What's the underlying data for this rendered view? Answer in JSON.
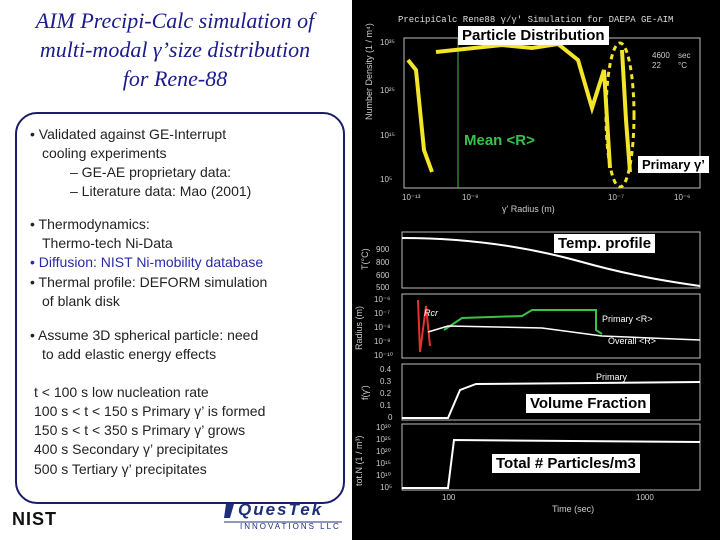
{
  "title": {
    "line1": "AIM Precipi-Calc simulation of",
    "line2": "multi-modal γ’size distribution",
    "line3": "for Rene-88"
  },
  "bullets": {
    "b1_line1": "• Validated against GE-Interrupt",
    "b1_line2": "cooling experiments",
    "b1_sub1": "– GE-AE proprietary data:",
    "b1_sub2": "– Literature data: Mao (2001)",
    "b2_line1": "• Thermodynamics:",
    "b2_line2": "Thermo-tech Ni-Data",
    "b3": "• Diffusion: NIST Ni-mobility database",
    "b4_line1": "• Thermal profile: DEFORM simulation",
    "b4_line2": "of blank disk",
    "b5_line1": "• Assume 3D spherical particle: need",
    "b5_line2": "to add elastic energy effects"
  },
  "timeline": [
    "t < 100 s low nucleation rate",
    "100 s < t < 150 s  Primary γ’ is formed",
    "150 s < t < 350 s  Primary γ’ grows",
    "400 s Secondary γ’ precipitates",
    "500 s Tertiary γ’ precipitates"
  ],
  "logos": {
    "nist": "NIST",
    "questek_line1": "QuesTek",
    "questek_line2": "INNOVATIONS LLC"
  },
  "figure": {
    "header": "PrecipiCalc Rene88 γ/γ' Simulation for DAEPA GE-AIM",
    "annotations": {
      "particle_distribution": "Particle Distribution",
      "mean_r": "Mean <R>",
      "primary_gamma": "Primary γ’",
      "temp_profile": "Temp. profile",
      "volume_fraction": "Volume Fraction",
      "total_particles": "Total # Particles/m3"
    },
    "top_plot": {
      "ylabel": "Number Density (1 / m⁴)",
      "xlabel": "γ' Radius (m)",
      "yticks": [
        "10³⁵",
        "10²⁵",
        "10¹⁵",
        "10⁵"
      ],
      "xticks": [
        "10⁻¹³",
        "10⁻⁹",
        "10⁻⁷",
        "10⁻⁶"
      ],
      "time_label": "4600",
      "time_unit": "sec",
      "temp_label": "22",
      "temp_unit": "°C"
    },
    "temp_plot": {
      "ylabel": "T(°C)",
      "yticks": [
        "900",
        "800",
        "600",
        "500"
      ]
    },
    "radius_plot": {
      "ylabel": "Radius (m)",
      "yticks": [
        "10⁻⁶",
        "10⁻⁷",
        "10⁻⁸",
        "10⁻⁹",
        "10⁻¹⁰"
      ],
      "rcr_label": "Rcr",
      "primary_label": "Primary <R>",
      "overall_label": "Overall <R>"
    },
    "vf_plot": {
      "ylabel": "f(γ')",
      "yticks": [
        "0.4",
        "0.3",
        "0.2",
        "0.1",
        "0"
      ],
      "primary_label": "Primary"
    },
    "tot_plot": {
      "ylabel": "tot.N (1 / m³)",
      "yticks": [
        "10³⁰",
        "10²⁵",
        "10²⁰",
        "10¹⁵",
        "10¹⁰",
        "10⁵"
      ],
      "xticks": [
        "100",
        "1000"
      ],
      "xlabel": "Time (sec)"
    }
  }
}
